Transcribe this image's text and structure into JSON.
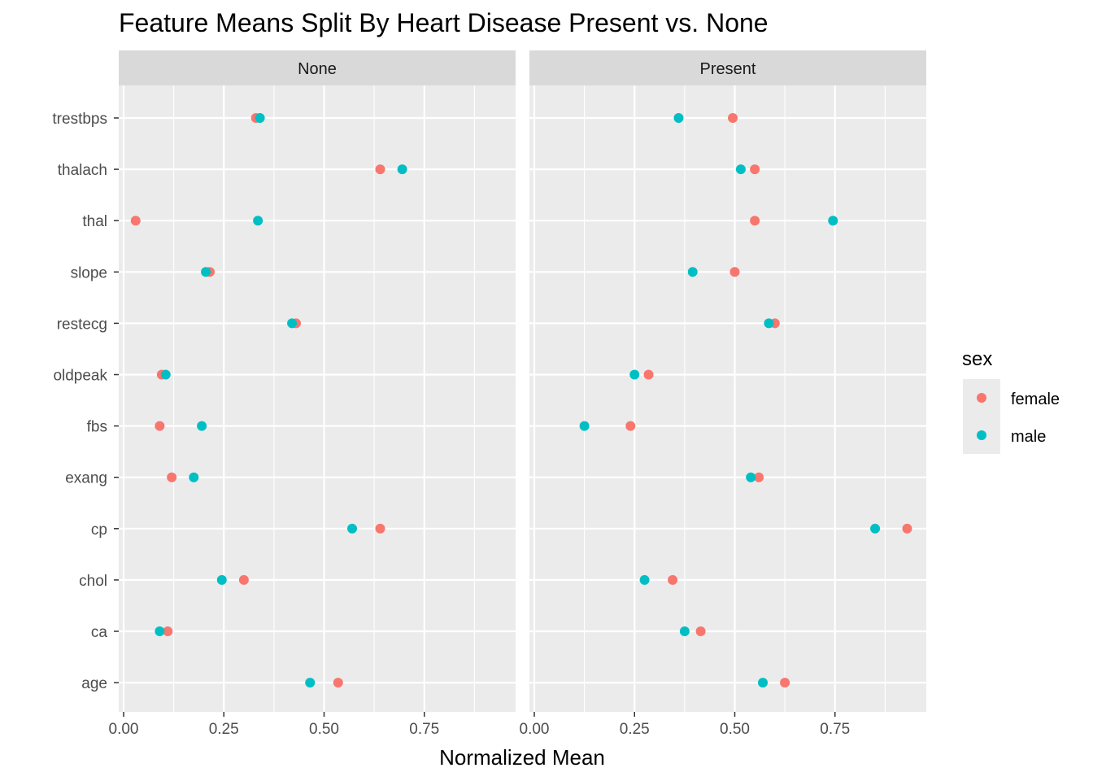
{
  "chart_data": {
    "type": "scatter",
    "title": "Feature Means Split By Heart Disease Present vs. None",
    "xlabel": "Normalized Mean",
    "ylabel": "",
    "xlim": [
      0,
      0.97
    ],
    "x_ticks": [
      "0.00",
      "0.25",
      "0.50",
      "0.75"
    ],
    "x_tick_values": [
      0,
      0.25,
      0.5,
      0.75
    ],
    "features": [
      "trestbps",
      "thalach",
      "thal",
      "slope",
      "restecg",
      "oldpeak",
      "fbs",
      "exang",
      "cp",
      "chol",
      "ca",
      "age"
    ],
    "grid": true,
    "legend": {
      "title": "sex",
      "position": "right",
      "entries": [
        {
          "name": "female",
          "color": "#F8766D"
        },
        {
          "name": "male",
          "color": "#00BFC4"
        }
      ]
    },
    "panels": [
      {
        "label": "None",
        "series": [
          {
            "name": "female",
            "points": [
              {
                "feature": "trestbps",
                "x": 0.33
              },
              {
                "feature": "thalach",
                "x": 0.64
              },
              {
                "feature": "thal",
                "x": 0.03
              },
              {
                "feature": "slope",
                "x": 0.215
              },
              {
                "feature": "restecg",
                "x": 0.43
              },
              {
                "feature": "oldpeak",
                "x": 0.095
              },
              {
                "feature": "fbs",
                "x": 0.09
              },
              {
                "feature": "exang",
                "x": 0.12
              },
              {
                "feature": "cp",
                "x": 0.64
              },
              {
                "feature": "chol",
                "x": 0.3
              },
              {
                "feature": "ca",
                "x": 0.11
              },
              {
                "feature": "age",
                "x": 0.535
              }
            ]
          },
          {
            "name": "male",
            "points": [
              {
                "feature": "trestbps",
                "x": 0.34
              },
              {
                "feature": "thalach",
                "x": 0.695
              },
              {
                "feature": "thal",
                "x": 0.335
              },
              {
                "feature": "slope",
                "x": 0.205
              },
              {
                "feature": "restecg",
                "x": 0.42
              },
              {
                "feature": "oldpeak",
                "x": 0.105
              },
              {
                "feature": "fbs",
                "x": 0.195
              },
              {
                "feature": "exang",
                "x": 0.175
              },
              {
                "feature": "cp",
                "x": 0.57
              },
              {
                "feature": "chol",
                "x": 0.245
              },
              {
                "feature": "ca",
                "x": 0.09
              },
              {
                "feature": "age",
                "x": 0.465
              }
            ]
          }
        ]
      },
      {
        "label": "Present",
        "series": [
          {
            "name": "female",
            "points": [
              {
                "feature": "trestbps",
                "x": 0.495
              },
              {
                "feature": "thalach",
                "x": 0.55
              },
              {
                "feature": "thal",
                "x": 0.55
              },
              {
                "feature": "slope",
                "x": 0.5
              },
              {
                "feature": "restecg",
                "x": 0.6
              },
              {
                "feature": "oldpeak",
                "x": 0.285
              },
              {
                "feature": "fbs",
                "x": 0.24
              },
              {
                "feature": "exang",
                "x": 0.56
              },
              {
                "feature": "cp",
                "x": 0.93
              },
              {
                "feature": "chol",
                "x": 0.345
              },
              {
                "feature": "ca",
                "x": 0.415
              },
              {
                "feature": "age",
                "x": 0.625
              }
            ]
          },
          {
            "name": "male",
            "points": [
              {
                "feature": "trestbps",
                "x": 0.36
              },
              {
                "feature": "thalach",
                "x": 0.515
              },
              {
                "feature": "thal",
                "x": 0.745
              },
              {
                "feature": "slope",
                "x": 0.395
              },
              {
                "feature": "restecg",
                "x": 0.585
              },
              {
                "feature": "oldpeak",
                "x": 0.25
              },
              {
                "feature": "fbs",
                "x": 0.125
              },
              {
                "feature": "exang",
                "x": 0.54
              },
              {
                "feature": "cp",
                "x": 0.85
              },
              {
                "feature": "chol",
                "x": 0.275
              },
              {
                "feature": "ca",
                "x": 0.375
              },
              {
                "feature": "age",
                "x": 0.57
              }
            ]
          }
        ]
      }
    ]
  }
}
